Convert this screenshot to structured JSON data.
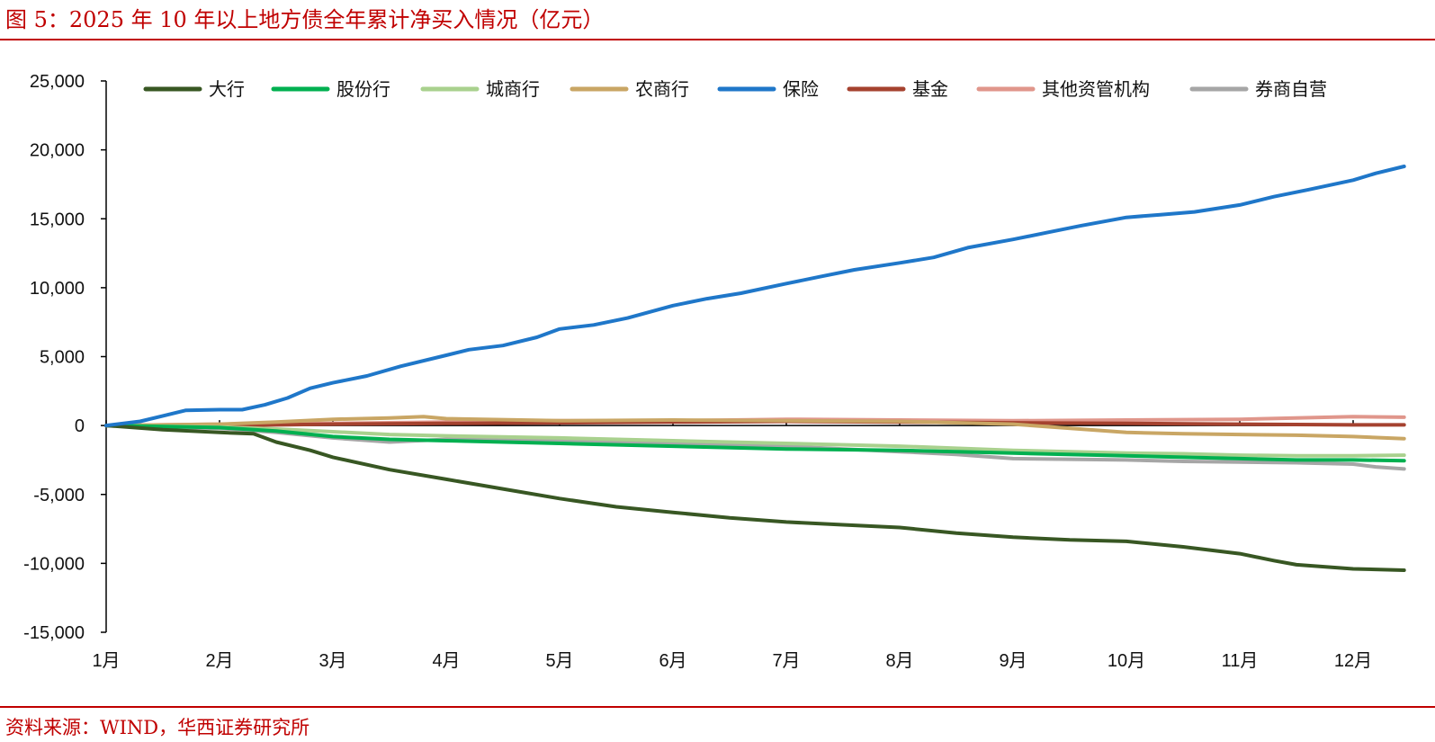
{
  "header": {
    "title": "图 5：2025 年 10 年以上地方债全年累计净买入情况（亿元）"
  },
  "footer": {
    "source": "资料来源：WIND，华西证券研究所"
  },
  "chart_data": {
    "type": "line",
    "title": "图 5：2025 年 10 年以上地方债全年累计净买入情况（亿元）",
    "xlabel": "",
    "ylabel": "",
    "x_ticks": [
      "1月",
      "2月",
      "3月",
      "4月",
      "5月",
      "6月",
      "7月",
      "8月",
      "9月",
      "10月",
      "11月",
      "12月"
    ],
    "y_ticks": [
      "25,000",
      "20,000",
      "15,000",
      "10,000",
      "5,000",
      "0",
      "-5,000",
      "-10,000",
      "-15,000"
    ],
    "ylim": [
      -15000,
      25000
    ],
    "xlim": [
      1,
      12.45
    ],
    "legend_position": "top",
    "grid": false,
    "series": [
      {
        "name": "大行",
        "color": "#385723",
        "x": [
          1,
          1.5,
          2,
          2.3,
          2.5,
          2.8,
          3,
          3.5,
          4,
          4.5,
          5,
          5.5,
          6,
          6.5,
          7,
          7.5,
          8,
          8.5,
          9,
          9.5,
          10,
          10.5,
          11,
          11.3,
          11.5,
          12,
          12.45
        ],
        "y": [
          0,
          -300,
          -500,
          -600,
          -1200,
          -1800,
          -2300,
          -3200,
          -3900,
          -4600,
          -5300,
          -5900,
          -6300,
          -6700,
          -7000,
          -7200,
          -7400,
          -7800,
          -8100,
          -8300,
          -8400,
          -8800,
          -9300,
          -9800,
          -10100,
          -10400,
          -10500
        ]
      },
      {
        "name": "股份行",
        "color": "#00b050",
        "x": [
          1,
          2,
          2.5,
          3,
          3.5,
          4,
          5,
          6,
          7,
          8,
          9,
          10,
          10.5,
          11,
          11.5,
          12,
          12.45
        ],
        "y": [
          0,
          -150,
          -400,
          -800,
          -1000,
          -1100,
          -1300,
          -1500,
          -1700,
          -1800,
          -2000,
          -2200,
          -2300,
          -2400,
          -2500,
          -2500,
          -2550
        ]
      },
      {
        "name": "城商行",
        "color": "#a9d18e",
        "x": [
          1,
          2,
          2.5,
          3,
          3.5,
          4,
          5,
          6,
          7,
          8,
          9,
          10,
          10.5,
          11,
          11.5,
          12,
          12.45
        ],
        "y": [
          0,
          -100,
          -250,
          -450,
          -650,
          -750,
          -900,
          -1100,
          -1300,
          -1500,
          -1800,
          -2000,
          -2050,
          -2150,
          -2200,
          -2200,
          -2150
        ]
      },
      {
        "name": "农商行",
        "color": "#c9a664",
        "x": [
          1,
          2,
          2.5,
          3,
          3.5,
          3.8,
          4,
          5,
          6,
          7,
          8,
          9,
          10,
          10.5,
          11,
          11.5,
          12,
          12.45
        ],
        "y": [
          0,
          100,
          250,
          450,
          550,
          650,
          500,
          350,
          400,
          350,
          300,
          100,
          -500,
          -600,
          -650,
          -700,
          -800,
          -950
        ]
      },
      {
        "name": "保险",
        "color": "#1f77c9",
        "x": [
          1,
          1.3,
          1.5,
          1.7,
          2,
          2.2,
          2.4,
          2.6,
          2.8,
          3,
          3.3,
          3.6,
          4,
          4.2,
          4.5,
          4.8,
          5,
          5.3,
          5.6,
          6,
          6.3,
          6.6,
          7,
          7.3,
          7.6,
          8,
          8.3,
          8.6,
          9,
          9.3,
          9.6,
          10,
          10.3,
          10.6,
          11,
          11.3,
          11.6,
          12,
          12.2,
          12.45
        ],
        "y": [
          0,
          300,
          700,
          1100,
          1150,
          1150,
          1500,
          2000,
          2700,
          3100,
          3600,
          4300,
          5100,
          5500,
          5800,
          6400,
          7000,
          7300,
          7800,
          8700,
          9200,
          9600,
          10300,
          10800,
          11300,
          11800,
          12200,
          12900,
          13500,
          14000,
          14500,
          15100,
          15300,
          15500,
          16000,
          16600,
          17100,
          17800,
          18300,
          18800
        ]
      },
      {
        "name": "基金",
        "color": "#a5422f",
        "x": [
          1,
          2,
          3,
          4,
          5,
          6,
          7,
          8,
          9,
          10,
          11,
          12,
          12.45
        ],
        "y": [
          0,
          0,
          100,
          150,
          200,
          250,
          300,
          250,
          200,
          150,
          100,
          50,
          50
        ]
      },
      {
        "name": "其他资管机构",
        "color": "#e0968b",
        "x": [
          1,
          2,
          3,
          4,
          5,
          6,
          7,
          8,
          9,
          10,
          11,
          12,
          12.45
        ],
        "y": [
          0,
          100,
          150,
          250,
          350,
          350,
          450,
          400,
          350,
          400,
          450,
          650,
          600
        ]
      },
      {
        "name": "券商自营",
        "color": "#a6a6a6",
        "x": [
          1,
          2,
          2.5,
          3,
          3.5,
          4,
          5,
          6,
          7,
          8,
          8.5,
          9,
          10,
          10.5,
          11,
          11.5,
          12,
          12.2,
          12.45
        ],
        "y": [
          0,
          -200,
          -500,
          -900,
          -1200,
          -1000,
          -1100,
          -1300,
          -1500,
          -1900,
          -2100,
          -2400,
          -2500,
          -2600,
          -2650,
          -2700,
          -2800,
          -3000,
          -3150
        ]
      }
    ]
  }
}
